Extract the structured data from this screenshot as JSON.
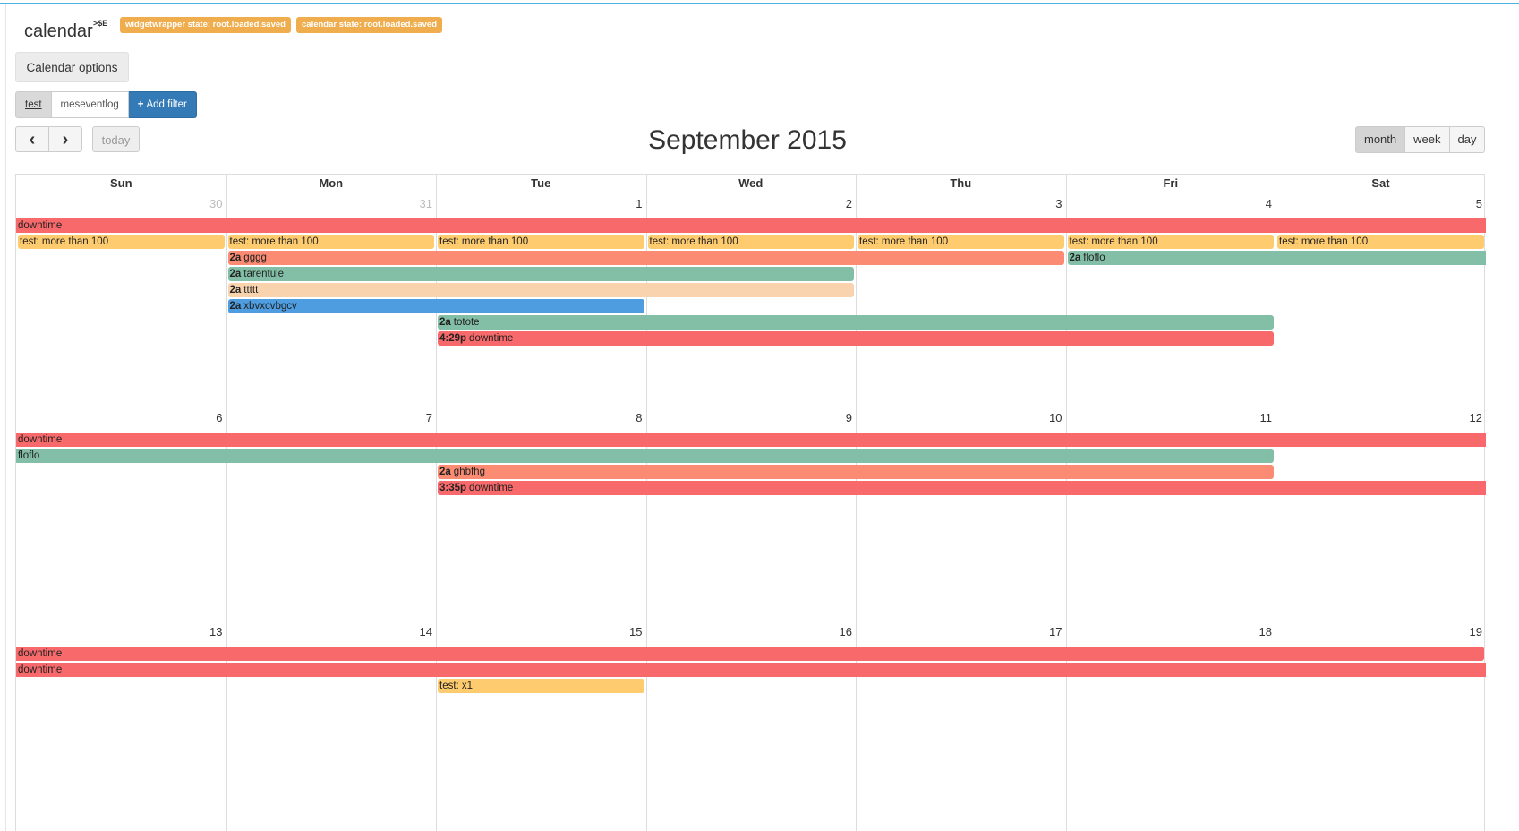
{
  "header": {
    "widget_title": "calendar",
    "title_sup": ">$E",
    "badges": [
      "widgetwrapper state: root.loaded.saved",
      "calendar state: root.loaded.saved"
    ]
  },
  "toolbar": {
    "options_label": "Calendar options",
    "filters": [
      "test",
      "meseventlog"
    ],
    "add_filter_label": "Add filter",
    "prev_icon": "‹",
    "next_icon": "›",
    "today_label": "today",
    "title": "September 2015",
    "views": [
      "month",
      "week",
      "day"
    ],
    "active_view": "month"
  },
  "day_headers": [
    "Sun",
    "Mon",
    "Tue",
    "Wed",
    "Thu",
    "Fri",
    "Sat"
  ],
  "weeks": [
    [
      "30",
      "31",
      "1",
      "2",
      "3",
      "4",
      "5"
    ],
    [
      "6",
      "7",
      "8",
      "9",
      "10",
      "11",
      "12"
    ],
    [
      "13",
      "14",
      "15",
      "16",
      "17",
      "18",
      "19"
    ]
  ],
  "colors": {
    "red": "#f8696b",
    "yellow": "#fecb6e",
    "teal": "#82bfa6",
    "salmon": "#fb8c73",
    "peach": "#f8d3ae",
    "blue": "#4d9de0"
  },
  "events": [
    {
      "week": 0,
      "start": 0,
      "end": 6,
      "row": 0,
      "time": "",
      "title": "downtime",
      "color": "red",
      "full": true
    },
    {
      "week": 0,
      "start": 0,
      "end": 0,
      "row": 1,
      "time": "",
      "title": "test: more than 100",
      "color": "yellow"
    },
    {
      "week": 0,
      "start": 1,
      "end": 1,
      "row": 1,
      "time": "",
      "title": "test: more than 100",
      "color": "yellow"
    },
    {
      "week": 0,
      "start": 2,
      "end": 2,
      "row": 1,
      "time": "",
      "title": "test: more than 100",
      "color": "yellow"
    },
    {
      "week": 0,
      "start": 3,
      "end": 3,
      "row": 1,
      "time": "",
      "title": "test: more than 100",
      "color": "yellow"
    },
    {
      "week": 0,
      "start": 4,
      "end": 4,
      "row": 1,
      "time": "",
      "title": "test: more than 100",
      "color": "yellow"
    },
    {
      "week": 0,
      "start": 5,
      "end": 5,
      "row": 1,
      "time": "",
      "title": "test: more than 100",
      "color": "yellow"
    },
    {
      "week": 0,
      "start": 6,
      "end": 6,
      "row": 1,
      "time": "",
      "title": "test: more than 100",
      "color": "yellow"
    },
    {
      "week": 0,
      "start": 1,
      "end": 4,
      "row": 2,
      "time": "2a",
      "title": "gggg",
      "color": "salmon"
    },
    {
      "week": 0,
      "start": 5,
      "end": 6,
      "row": 2,
      "time": "2a",
      "title": "floflo",
      "color": "teal",
      "openEnd": true
    },
    {
      "week": 0,
      "start": 1,
      "end": 3,
      "row": 3,
      "time": "2a",
      "title": "tarentule",
      "color": "teal"
    },
    {
      "week": 0,
      "start": 1,
      "end": 3,
      "row": 4,
      "time": "2a",
      "title": "ttttt",
      "color": "peach"
    },
    {
      "week": 0,
      "start": 1,
      "end": 2,
      "row": 5,
      "time": "2a",
      "title": "xbvxcvbgcv",
      "color": "blue"
    },
    {
      "week": 0,
      "start": 2,
      "end": 5,
      "row": 6,
      "time": "2a",
      "title": "totote",
      "color": "teal"
    },
    {
      "week": 0,
      "start": 2,
      "end": 5,
      "row": 7,
      "time": "4:29p",
      "title": "downtime",
      "color": "red"
    },
    {
      "week": 1,
      "start": 0,
      "end": 6,
      "row": 0,
      "time": "",
      "title": "downtime",
      "color": "red",
      "full": true
    },
    {
      "week": 1,
      "start": 0,
      "end": 5,
      "row": 1,
      "time": "",
      "title": "floflo",
      "color": "teal",
      "openStart": true
    },
    {
      "week": 1,
      "start": 2,
      "end": 5,
      "row": 2,
      "time": "2a",
      "title": "ghbfhg",
      "color": "salmon"
    },
    {
      "week": 1,
      "start": 2,
      "end": 6,
      "row": 3,
      "time": "3:35p",
      "title": "downtime",
      "color": "red",
      "openEnd": true
    },
    {
      "week": 2,
      "start": 0,
      "end": 6,
      "row": 0,
      "time": "",
      "title": "downtime",
      "color": "red",
      "openStart": true
    },
    {
      "week": 2,
      "start": 0,
      "end": 6,
      "row": 1,
      "time": "",
      "title": "downtime",
      "color": "red",
      "full": true
    },
    {
      "week": 2,
      "start": 2,
      "end": 2,
      "row": 2,
      "time": "",
      "title": "test: x1",
      "color": "yellow"
    }
  ]
}
